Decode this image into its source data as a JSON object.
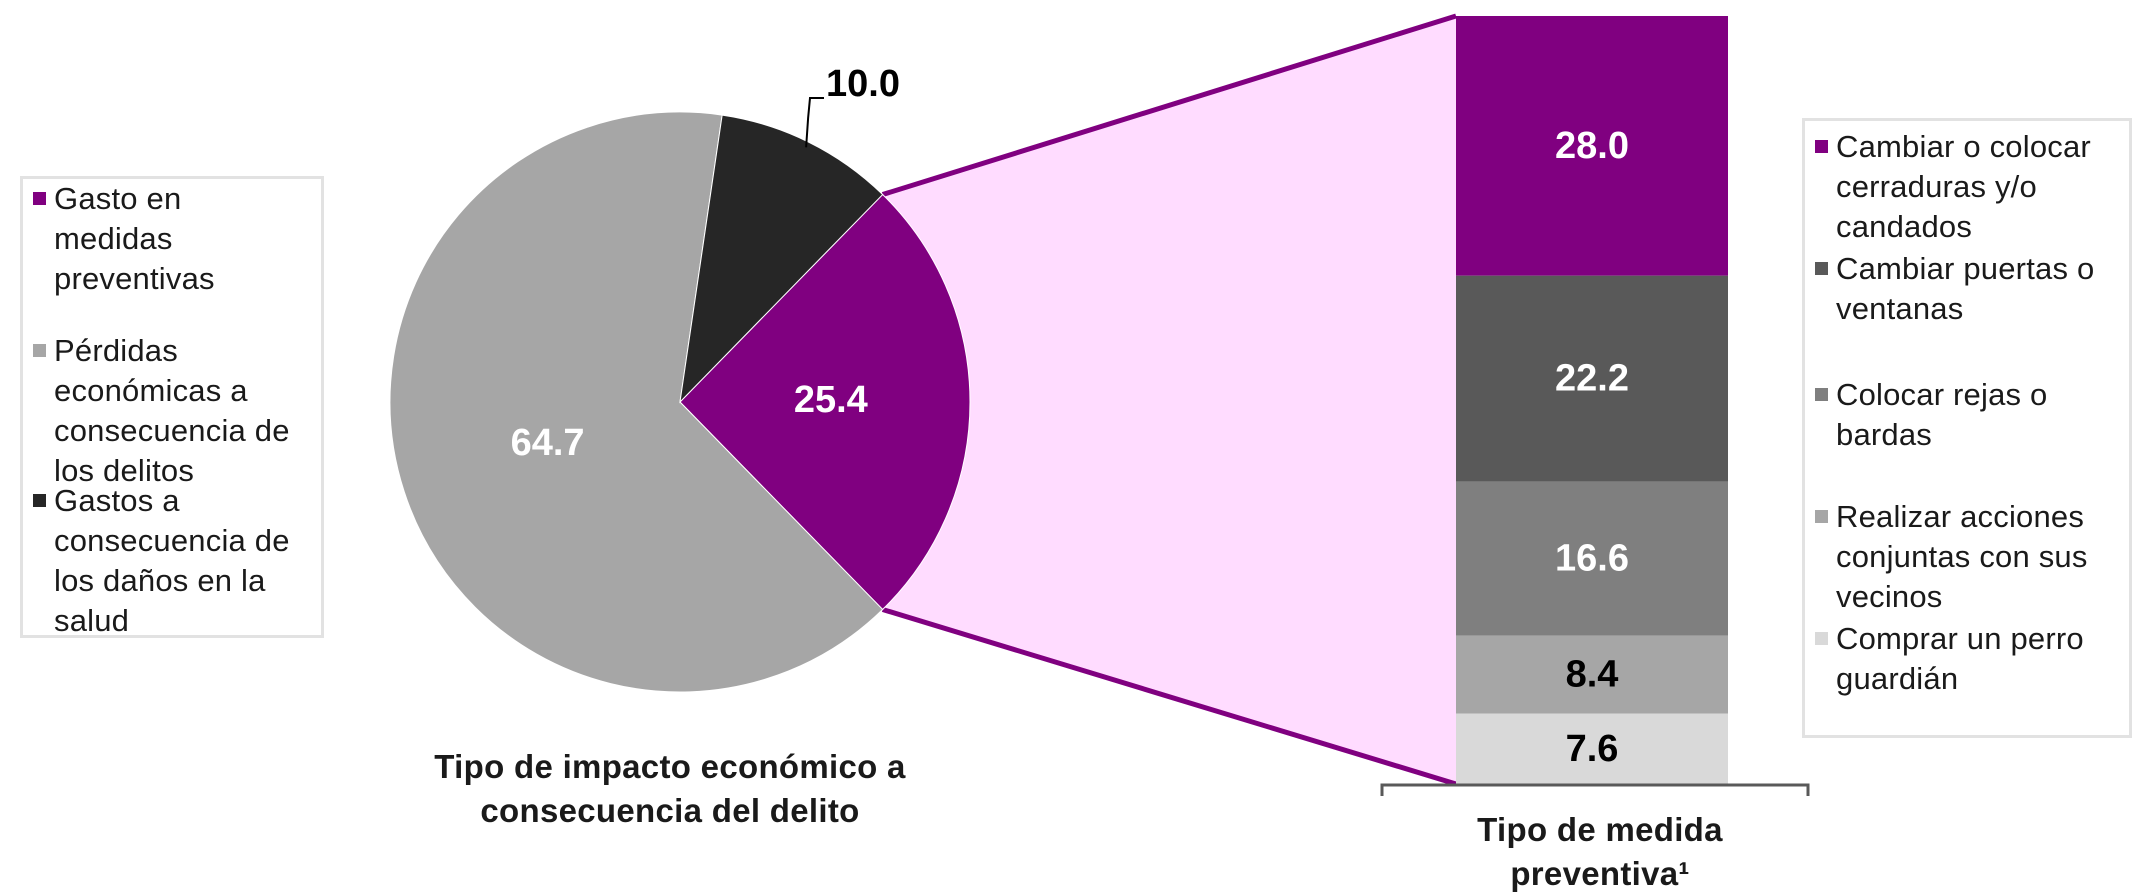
{
  "chart_data": [
    {
      "type": "pie",
      "caption": "Tipo de impacto económico a consecuencia del delito",
      "slices": [
        {
          "name": "Gasto en medidas preventivas",
          "value": 25.4,
          "label": "25.4",
          "color": "#800080"
        },
        {
          "name": "Pérdidas económicas a consecuencia de los delitos",
          "value": 64.7,
          "label": "64.7",
          "color": "#a6a6a6"
        },
        {
          "name": "Gastos a consecuencia de los daños en la salud",
          "value": 10.0,
          "label": "10.0",
          "color": "#262626"
        }
      ]
    },
    {
      "type": "bar",
      "stacked": true,
      "caption": "Tipo de medida preventiva¹",
      "segments": [
        {
          "name": "Cambiar o colocar cerraduras y/o candados",
          "value": 28.0,
          "label": "28.0",
          "color": "#800080"
        },
        {
          "name": "Cambiar puertas o ventanas",
          "value": 22.2,
          "label": "22.2",
          "color": "#595959"
        },
        {
          "name": "Colocar rejas o bardas",
          "value": 16.6,
          "label": "16.6",
          "color": "#7f7f7f"
        },
        {
          "name": "Realizar acciones conjuntas con sus vecinos",
          "value": 8.4,
          "label": "8.4",
          "color": "#a6a6a6"
        },
        {
          "name": "Comprar un perro guardián",
          "value": 7.6,
          "label": "7.6",
          "color": "#d9d9d9"
        }
      ]
    }
  ],
  "left_legend": {
    "items": [
      {
        "lines": [
          "Gasto en",
          "medidas",
          "preventivas"
        ],
        "color": "#800080"
      },
      {
        "lines": [
          "Pérdidas",
          "económicas a",
          "consecuencia de",
          "los delitos"
        ],
        "color": "#a6a6a6"
      },
      {
        "lines": [
          "Gastos a",
          "consecuencia de",
          "los daños en la",
          "salud"
        ],
        "color": "#262626"
      }
    ]
  },
  "right_legend": {
    "items": [
      {
        "lines": [
          "Cambiar o colocar",
          "cerraduras y/o",
          "candados"
        ],
        "color": "#800080"
      },
      {
        "lines": [
          "Cambiar puertas o",
          "ventanas"
        ],
        "color": "#595959"
      },
      {
        "lines": [
          "Colocar rejas o",
          "bardas"
        ],
        "color": "#7f7f7f"
      },
      {
        "lines": [
          "Realizar acciones",
          "conjuntas con sus",
          "vecinos"
        ],
        "color": "#a6a6a6"
      },
      {
        "lines": [
          "Comprar un perro",
          "guardián"
        ],
        "color": "#d9d9d9"
      }
    ]
  },
  "colors": {
    "zoom_fill": "#ffdcff",
    "zoom_outline": "#800080",
    "bracket": "#595959",
    "label_light": "#ffffff",
    "label_dark": "#000000"
  }
}
